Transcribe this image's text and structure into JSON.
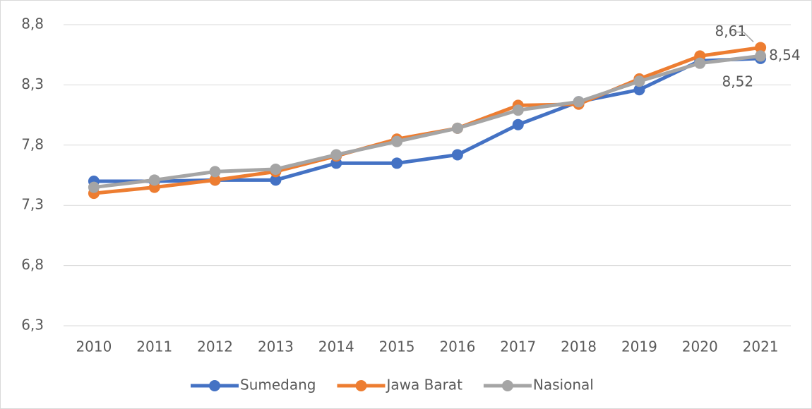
{
  "chart_data": {
    "type": "line",
    "categories": [
      "2010",
      "2011",
      "2012",
      "2013",
      "2014",
      "2015",
      "2016",
      "2017",
      "2018",
      "2019",
      "2020",
      "2021"
    ],
    "series": [
      {
        "name": "Sumedang",
        "color": "#4472c4",
        "values": [
          7.5,
          7.5,
          7.51,
          7.51,
          7.65,
          7.65,
          7.72,
          7.97,
          8.16,
          8.26,
          8.5,
          8.52
        ],
        "value_labels": [
          null,
          null,
          null,
          null,
          null,
          null,
          null,
          null,
          null,
          null,
          null,
          "8,52"
        ]
      },
      {
        "name": "Jawa Barat",
        "color": "#ed7d31",
        "values": [
          7.4,
          7.45,
          7.51,
          7.58,
          7.71,
          7.85,
          7.94,
          8.13,
          8.14,
          8.35,
          8.54,
          8.61
        ],
        "value_labels": [
          null,
          null,
          null,
          null,
          null,
          null,
          null,
          null,
          null,
          null,
          null,
          "8,61"
        ]
      },
      {
        "name": "Nasional",
        "color": "#a5a5a5",
        "values": [
          7.45,
          7.51,
          7.58,
          7.6,
          7.72,
          7.83,
          7.94,
          8.09,
          8.16,
          8.33,
          8.48,
          8.54
        ],
        "value_labels": [
          null,
          null,
          null,
          null,
          null,
          null,
          null,
          null,
          null,
          null,
          null,
          "8,54"
        ]
      }
    ],
    "ylim": [
      6.3,
      8.8
    ],
    "yticks": [
      {
        "value": 6.3,
        "label": "6,3"
      },
      {
        "value": 6.8,
        "label": "6,8"
      },
      {
        "value": 7.3,
        "label": "7,3"
      },
      {
        "value": 7.8,
        "label": "7,8"
      },
      {
        "value": 8.3,
        "label": "8,3"
      },
      {
        "value": 8.8,
        "label": "8,8"
      }
    ],
    "grid": true,
    "legend": "bottom"
  }
}
